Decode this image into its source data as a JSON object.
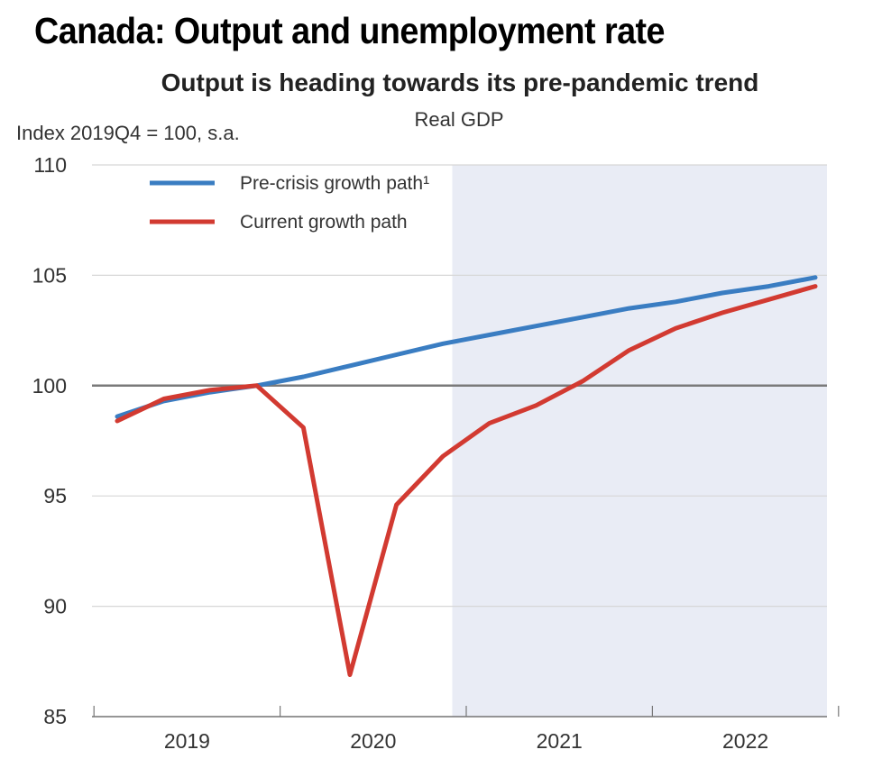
{
  "page": {
    "title": "Canada: Output and unemployment rate"
  },
  "chart_data": {
    "type": "line",
    "title": "Output is heading towards its pre-pandemic trend",
    "subtitle": "Real GDP",
    "ylabel": "Index 2019Q4 = 100, s.a.",
    "ylim": [
      85,
      110
    ],
    "yticks": [
      85,
      90,
      95,
      100,
      105,
      110
    ],
    "x_tick_labels": [
      "2019",
      "2020",
      "2021",
      "2022"
    ],
    "x": [
      "2019Q1",
      "2019Q2",
      "2019Q3",
      "2019Q4",
      "2020Q1",
      "2020Q2",
      "2020Q3",
      "2020Q4",
      "2021Q1",
      "2021Q2",
      "2021Q3",
      "2021Q4",
      "2022Q1",
      "2022Q2",
      "2022Q3",
      "2022Q4"
    ],
    "series": [
      {
        "name": "Pre-crisis growth path¹",
        "color": "#3a7dc2",
        "values": [
          98.6,
          99.3,
          99.7,
          100.0,
          100.4,
          100.9,
          101.4,
          101.9,
          102.3,
          102.7,
          103.1,
          103.5,
          103.8,
          104.2,
          104.5,
          104.9
        ]
      },
      {
        "name": "Current growth path",
        "color": "#d23a31",
        "values": [
          98.4,
          99.4,
          99.8,
          100.0,
          98.1,
          86.9,
          94.6,
          96.8,
          98.3,
          99.1,
          100.2,
          101.6,
          102.6,
          103.3,
          103.9,
          104.5
        ]
      }
    ],
    "projection_shading": {
      "from": "2021Q1",
      "color": "#e9ecf5"
    },
    "reference_line": {
      "y": 100,
      "color": "#7a7a7a"
    },
    "grid": true,
    "legend_position": "top-left"
  }
}
